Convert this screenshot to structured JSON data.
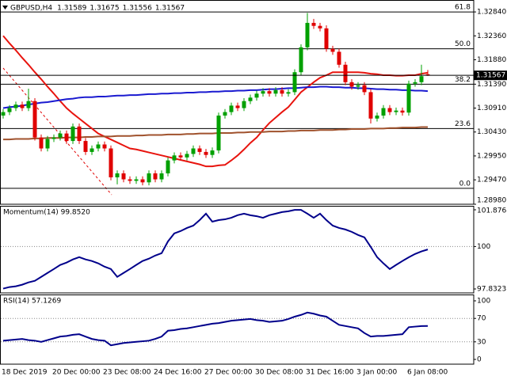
{
  "chart_data": [
    {
      "type": "candlestick",
      "title": "GBPUSD,H4",
      "ohlc_header": [
        1.31589,
        1.31675,
        1.31556,
        1.31567
      ],
      "categories": [
        "18 Dec 2019",
        null,
        null,
        null,
        null,
        null,
        null,
        null,
        "20 Dec 00:00",
        null,
        null,
        null,
        null,
        null,
        null,
        null,
        "23 Dec 08:00",
        null,
        null,
        null,
        null,
        null,
        null,
        null,
        "24 Dec 16:00",
        null,
        null,
        null,
        null,
        null,
        null,
        null,
        "27 Dec 00:00",
        null,
        null,
        null,
        null,
        null,
        null,
        null,
        "30 Dec 08:00",
        null,
        null,
        null,
        null,
        null,
        null,
        null,
        "31 Dec 16:00",
        null,
        null,
        null,
        null,
        null,
        null,
        null,
        "3 Jan 00:00",
        null,
        null,
        null,
        null,
        null,
        null,
        null,
        "6 Jan 08:00",
        null,
        null,
        null
      ],
      "open": [
        1.3076,
        1.3083,
        1.3091,
        1.3098,
        1.3091,
        1.3105,
        1.3032,
        1.301,
        1.3029,
        1.3032,
        1.304,
        1.3025,
        1.3054,
        1.3025,
        1.3003,
        1.301,
        1.3018,
        1.301,
        1.2952,
        1.296,
        1.2948,
        1.2945,
        1.2948,
        1.2942,
        1.296,
        1.2948,
        1.296,
        1.2986,
        1.2996,
        1.2992,
        1.2999,
        1.301,
        1.3003,
        1.2997,
        1.3006,
        1.3076,
        1.3083,
        1.3096,
        1.3091,
        1.3105,
        1.3112,
        1.312,
        1.3125,
        1.312,
        1.3127,
        1.312,
        1.3123,
        1.3163,
        1.3213,
        1.3262,
        1.3256,
        1.3251,
        1.321,
        1.3204,
        1.3178,
        1.3143,
        1.3134,
        1.3137,
        1.3123,
        1.307,
        1.3076,
        1.3091,
        1.3083,
        1.3086,
        1.3082,
        1.314,
        1.3143,
        1.31589
      ],
      "high": [
        1.3089,
        1.3097,
        1.3104,
        1.3104,
        1.313,
        1.3111,
        1.3038,
        1.3035,
        1.3038,
        1.3046,
        1.3046,
        1.306,
        1.306,
        1.3031,
        1.3016,
        1.3024,
        1.3024,
        1.3016,
        1.2966,
        1.2966,
        1.2954,
        1.2954,
        1.2954,
        1.2966,
        1.2966,
        1.2966,
        1.2992,
        1.3002,
        1.3002,
        1.3005,
        1.3016,
        1.3016,
        1.3009,
        1.3012,
        1.3082,
        1.3089,
        1.3102,
        1.3102,
        1.3111,
        1.3118,
        1.3126,
        1.3131,
        1.3131,
        1.3133,
        1.3133,
        1.3129,
        1.3169,
        1.3219,
        1.3282,
        1.327,
        1.3262,
        1.3257,
        1.3216,
        1.321,
        1.3184,
        1.3149,
        1.3143,
        1.3143,
        1.3129,
        1.3082,
        1.3097,
        1.3097,
        1.3092,
        1.3092,
        1.3146,
        1.3149,
        1.3178,
        1.31675
      ],
      "low": [
        1.307,
        1.3077,
        1.3085,
        1.3085,
        1.3085,
        1.3026,
        1.3004,
        1.3004,
        1.3023,
        1.3026,
        1.3019,
        1.3019,
        1.3019,
        1.2997,
        1.2997,
        1.3004,
        1.3004,
        1.2946,
        1.2938,
        1.2942,
        1.2939,
        1.2939,
        1.2936,
        1.2936,
        1.2942,
        1.2942,
        1.2954,
        1.298,
        1.2986,
        1.2986,
        1.2993,
        1.2997,
        1.2991,
        1.2991,
        1.3,
        1.307,
        1.3077,
        1.3085,
        1.3085,
        1.3099,
        1.3106,
        1.3114,
        1.3114,
        1.3114,
        1.3114,
        1.3114,
        1.3117,
        1.3157,
        1.3207,
        1.325,
        1.3245,
        1.3204,
        1.3198,
        1.3172,
        1.3137,
        1.3128,
        1.3128,
        1.3117,
        1.306,
        1.3064,
        1.307,
        1.3077,
        1.3077,
        1.3076,
        1.3076,
        1.3134,
        1.3137,
        1.31556
      ],
      "close": [
        1.3083,
        1.3091,
        1.3098,
        1.3091,
        1.3105,
        1.3032,
        1.301,
        1.3029,
        1.3032,
        1.304,
        1.3025,
        1.3054,
        1.3025,
        1.3003,
        1.301,
        1.3018,
        1.301,
        1.2952,
        1.296,
        1.2948,
        1.2945,
        1.2948,
        1.2942,
        1.296,
        1.2948,
        1.296,
        1.2986,
        1.2996,
        1.2992,
        1.2999,
        1.301,
        1.3003,
        1.2997,
        1.3006,
        1.3076,
        1.3083,
        1.3096,
        1.3091,
        1.3105,
        1.3112,
        1.312,
        1.3125,
        1.312,
        1.3127,
        1.312,
        1.3123,
        1.3163,
        1.3213,
        1.3262,
        1.3256,
        1.3251,
        1.321,
        1.3204,
        1.3178,
        1.3143,
        1.3134,
        1.3137,
        1.3123,
        1.307,
        1.3076,
        1.3091,
        1.3083,
        1.3086,
        1.3082,
        1.314,
        1.3143,
        1.3155,
        1.31567
      ],
      "up_color": "#00a000",
      "down_color": "#e00000",
      "overlays": [
        {
          "color": "#e8140e",
          "values": [
            1.3236,
            1.3221,
            1.3207,
            1.3192,
            1.3178,
            1.3163,
            1.3149,
            1.3134,
            1.312,
            1.3105,
            1.3091,
            1.308,
            1.307,
            1.306,
            1.305,
            1.304,
            1.3034,
            1.3028,
            1.3022,
            1.3016,
            1.301,
            1.3008,
            1.3005,
            1.3002,
            1.2999,
            1.2996,
            1.2993,
            1.299,
            1.2987,
            1.2984,
            1.2981,
            1.2978,
            1.2974,
            1.2974,
            1.2976,
            1.2977,
            1.2986,
            1.2996,
            1.3008,
            1.3021,
            1.3032,
            1.3047,
            1.3061,
            1.3072,
            1.3083,
            1.3093,
            1.3108,
            1.3123,
            1.3133,
            1.3143,
            1.3152,
            1.3157,
            1.3163,
            1.3163,
            1.3163,
            1.3163,
            1.3163,
            1.3162,
            1.316,
            1.3159,
            1.3157,
            1.3157,
            1.3156,
            1.3156,
            1.3157,
            1.3157,
            1.316,
            1.3162
          ]
        },
        {
          "color": "#1a1ad0",
          "values": [
            1.3091,
            1.3093,
            1.3094,
            1.3096,
            1.3098,
            1.31,
            1.3102,
            1.3103,
            1.3105,
            1.3107,
            1.3109,
            1.311,
            1.3112,
            1.3113,
            1.3113,
            1.3114,
            1.3114,
            1.3115,
            1.3116,
            1.3116,
            1.3117,
            1.3117,
            1.3118,
            1.3119,
            1.3119,
            1.312,
            1.312,
            1.3121,
            1.3121,
            1.3122,
            1.3122,
            1.3123,
            1.3123,
            1.3124,
            1.3124,
            1.3125,
            1.3125,
            1.3126,
            1.3126,
            1.3127,
            1.3127,
            1.3128,
            1.3129,
            1.3129,
            1.313,
            1.3131,
            1.3131,
            1.3132,
            1.3133,
            1.3133,
            1.3134,
            1.3134,
            1.3133,
            1.3133,
            1.3132,
            1.3132,
            1.3131,
            1.3131,
            1.313,
            1.3129,
            1.3129,
            1.3128,
            1.3128,
            1.3127,
            1.3127,
            1.3126,
            1.3126,
            1.3125
          ]
        },
        {
          "color": "#a0522d",
          "values": [
            1.3028,
            1.3028,
            1.3029,
            1.3029,
            1.3029,
            1.303,
            1.303,
            1.3031,
            1.3031,
            1.3031,
            1.3032,
            1.3032,
            1.3032,
            1.3033,
            1.3033,
            1.3034,
            1.3034,
            1.3034,
            1.3035,
            1.3035,
            1.3035,
            1.3036,
            1.3036,
            1.3037,
            1.3037,
            1.3037,
            1.3038,
            1.3038,
            1.3038,
            1.3039,
            1.3039,
            1.304,
            1.304,
            1.304,
            1.3041,
            1.3041,
            1.3041,
            1.3042,
            1.3042,
            1.3043,
            1.3043,
            1.3043,
            1.3044,
            1.3044,
            1.3044,
            1.3045,
            1.3045,
            1.3046,
            1.3046,
            1.3046,
            1.3047,
            1.3047,
            1.3047,
            1.3048,
            1.3048,
            1.3049,
            1.3049,
            1.3049,
            1.305,
            1.305,
            1.305,
            1.3051,
            1.3051,
            1.3052,
            1.3052,
            1.3052,
            1.3053,
            1.3053
          ]
        }
      ],
      "fib_levels": [
        {
          "value": 1.3284,
          "label": "61.8"
        },
        {
          "value": 1.321,
          "label": "50.0"
        },
        {
          "value": 1.3139,
          "label": "38.2"
        },
        {
          "value": 1.305,
          "label": "23.6"
        },
        {
          "value": 1.293,
          "label": "0.0"
        }
      ],
      "current_price": 1.31567,
      "ylim": [
        1.2898,
        1.33
      ],
      "yticks": [
        {
          "value": 1.3284,
          "label": "1.32840"
        },
        {
          "value": 1.3236,
          "label": "1.32360"
        },
        {
          "value": 1.3188,
          "label": "1.31880"
        },
        {
          "value": 1.3139,
          "label": "1.31390"
        },
        {
          "value": 1.3091,
          "label": "1.30910"
        },
        {
          "value": 1.3043,
          "label": "1.30430"
        },
        {
          "value": 1.2995,
          "label": "1.29950"
        },
        {
          "value": 1.2947,
          "label": "1.29470"
        },
        {
          "value": 1.2898,
          "label": "1.28980"
        }
      ],
      "grid": false
    },
    {
      "type": "line",
      "title": "Momentum(14) 99.8520",
      "color": "#00008b",
      "values": [
        97.85,
        97.93,
        97.97,
        98.05,
        98.17,
        98.25,
        98.45,
        98.65,
        98.85,
        99.06,
        99.18,
        99.34,
        99.46,
        99.34,
        99.26,
        99.14,
        98.97,
        98.85,
        98.45,
        98.65,
        98.85,
        99.06,
        99.26,
        99.38,
        99.54,
        99.66,
        100.26,
        100.67,
        100.79,
        100.95,
        101.07,
        101.35,
        101.68,
        101.27,
        101.35,
        101.39,
        101.47,
        101.6,
        101.68,
        101.6,
        101.55,
        101.47,
        101.6,
        101.68,
        101.76,
        101.8,
        101.87,
        101.87,
        101.68,
        101.47,
        101.68,
        101.35,
        101.07,
        100.95,
        100.87,
        100.75,
        100.59,
        100.47,
        99.98,
        99.46,
        99.14,
        98.85,
        99.06,
        99.26,
        99.45,
        99.62,
        99.75,
        99.85
      ],
      "ylim": [
        97.8323,
        101.8768
      ],
      "yticks": [
        101.8768,
        100,
        97.8323
      ],
      "grid": true
    },
    {
      "type": "line",
      "title": "RSI(14) 57.1269",
      "color": "#00008b",
      "values": [
        32,
        33,
        34,
        35,
        33,
        32,
        30,
        33,
        36,
        39,
        40,
        42,
        43,
        39,
        35,
        33,
        32,
        24,
        26,
        28,
        29,
        30,
        31,
        32,
        35,
        39,
        49,
        50,
        52,
        53,
        55,
        57,
        59,
        61,
        62,
        64,
        66,
        67,
        68,
        69,
        67,
        66,
        64,
        65,
        66,
        69,
        73,
        76,
        80,
        78,
        75,
        73,
        66,
        59,
        57,
        55,
        53,
        45,
        39,
        40,
        40,
        41,
        42,
        43,
        55,
        56,
        57,
        57.13
      ],
      "ylim": [
        0,
        100
      ],
      "yticks": [
        100,
        70,
        30,
        0
      ],
      "grid": true
    }
  ]
}
